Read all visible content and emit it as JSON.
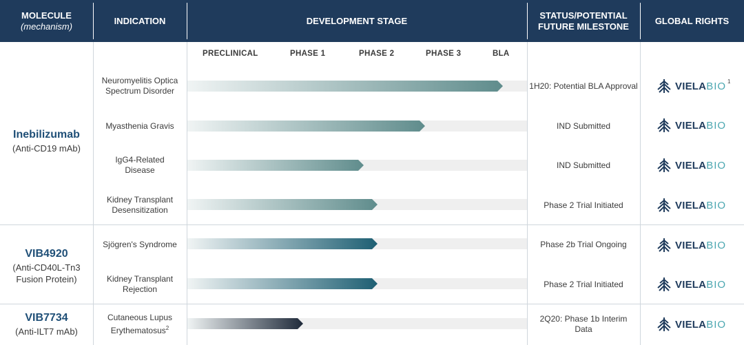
{
  "headers": {
    "molecule": "MOLECULE",
    "mechanism": "(mechanism)",
    "indication": "INDICATION",
    "development_stage": "DEVELOPMENT STAGE",
    "status_line1": "STATUS/POTENTIAL",
    "status_line2": "FUTURE MILESTONE",
    "global_rights": "GLOBAL RIGHTS"
  },
  "stages": [
    "PRECLINICAL",
    "PHASE 1",
    "PHASE 2",
    "PHASE 3",
    "BLA"
  ],
  "molecules": [
    {
      "name": "Inebilizumab",
      "mechanism": "(Anti-CD19 mAb)"
    },
    {
      "name": "VIB4920",
      "mechanism": "(Anti-CD40L-Tn3 Fusion Protein)"
    },
    {
      "name": "VIB7734",
      "mechanism": "(Anti-ILT7 mAb)"
    }
  ],
  "rows": [
    {
      "indication": "Neuromyelitis Optica Spectrum Disorder",
      "status": "1H20: Potential BLA Approval",
      "progress": 0.93,
      "rights_note": "1"
    },
    {
      "indication": "Myasthenia Gravis",
      "status": "IND Submitted",
      "progress": 0.7,
      "rights_note": ""
    },
    {
      "indication": "IgG4-Related Disease",
      "status": "IND Submitted",
      "progress": 0.52,
      "rights_note": ""
    },
    {
      "indication": "Kidney Transplant Desensitization",
      "status": "Phase 2 Trial Initiated",
      "progress": 0.56,
      "rights_note": ""
    },
    {
      "indication": "Sjögren's Syndrome",
      "status": "Phase 2b Trial Ongoing",
      "progress": 0.56,
      "rights_note": ""
    },
    {
      "indication": "Kidney Transplant Rejection",
      "status": "Phase 2 Trial Initiated",
      "progress": 0.56,
      "rights_note": ""
    },
    {
      "indication": "Cutaneous Lupus Erythematosus",
      "indication_note": "2",
      "status": "2Q20: Phase 1b Interim Data",
      "progress": 0.34,
      "rights_note": ""
    }
  ],
  "logo": {
    "viela": "VIELA",
    "bio": "BIO"
  },
  "colors": {
    "header_bg": "#1f3b5c",
    "molecule_name": "#1f4f77",
    "bar_light": "#f0f4f4",
    "bar_inebilizumab": "#5f8c8c",
    "bar_vib4920": "#1e5f73",
    "bar_vib7734": "#1f2a3a",
    "logo_dark": "#1f3b5c",
    "logo_teal": "#4aa6b0"
  }
}
